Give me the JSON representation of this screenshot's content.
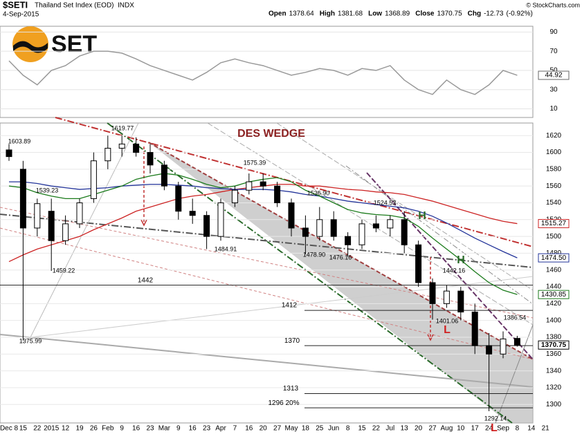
{
  "header": {
    "symbol": "$SETI",
    "name": "Thailand Set Index (EOD)",
    "exchange": "INDX",
    "date": "4-Sep-2015",
    "copyright": "© StockCharts.com",
    "quote": [
      {
        "label": "Open",
        "value": 1378.64
      },
      {
        "label": "High",
        "value": 1381.68
      },
      {
        "label": "Low",
        "value": 1368.89
      },
      {
        "label": "Close",
        "value": 1370.75
      },
      {
        "label": "Chg",
        "value": -12.73
      }
    ],
    "change_pct": "(-0.92%)",
    "logo": "SET"
  },
  "chart_data": [
    {
      "type": "line",
      "color": "#999999",
      "ylim": [
        1,
        96
      ],
      "yticks": [
        10,
        30,
        50,
        70,
        90
      ],
      "values": [
        60,
        45,
        35,
        50,
        55,
        65,
        70,
        70,
        68,
        62,
        55,
        50,
        45,
        40,
        48,
        58,
        62,
        58,
        55,
        50,
        45,
        48,
        52,
        50,
        45,
        52,
        50,
        55,
        40,
        30,
        25,
        40,
        30,
        25,
        35,
        50,
        44.92
      ]
    },
    {
      "type": "candlestick",
      "ylim": [
        1278,
        1635
      ],
      "yticks": [
        1300,
        1320,
        1340,
        1360,
        1380,
        1400,
        1420,
        1440,
        1460,
        1480,
        1500,
        1520,
        1540,
        1560,
        1580,
        1600,
        1620
      ],
      "xlabels": [
        "Dec 8",
        "15",
        "22",
        "2015",
        "12",
        "19",
        "26",
        "Feb",
        "9",
        "16",
        "23",
        "Mar",
        "9",
        "16",
        "23",
        "Apr",
        "7",
        "16",
        "20",
        "27",
        "May",
        "18",
        "25",
        "Jun",
        "8",
        "15",
        "22",
        "Jul",
        "13",
        "20",
        "27",
        "Aug",
        "10",
        "17",
        "24",
        "Sep",
        "8",
        "14",
        "21"
      ],
      "open": [
        1603,
        1580,
        1510,
        1530,
        1495,
        1515,
        1545,
        1590,
        1605,
        1610,
        1600,
        1585,
        1560,
        1530,
        1525,
        1500,
        1540,
        1555,
        1565,
        1560,
        1540,
        1510,
        1500,
        1520,
        1500,
        1490,
        1515,
        1510,
        1520,
        1490,
        1445,
        1420,
        1435,
        1410,
        1370,
        1360,
        1378.64
      ],
      "high": [
        1610,
        1590,
        1545,
        1545,
        1525,
        1545,
        1600,
        1620,
        1620,
        1618,
        1610,
        1590,
        1565,
        1545,
        1530,
        1545,
        1560,
        1575,
        1575,
        1565,
        1545,
        1525,
        1535,
        1530,
        1505,
        1520,
        1525,
        1525,
        1530,
        1495,
        1450,
        1442,
        1440,
        1420,
        1385,
        1387,
        1381.68
      ],
      "low": [
        1590,
        1376,
        1500,
        1459,
        1490,
        1510,
        1540,
        1580,
        1595,
        1595,
        1575,
        1555,
        1520,
        1515,
        1485,
        1495,
        1535,
        1550,
        1555,
        1535,
        1500,
        1479,
        1495,
        1495,
        1476,
        1485,
        1505,
        1500,
        1480,
        1440,
        1401,
        1415,
        1400,
        1360,
        1292,
        1355,
        1368.89
      ],
      "close": [
        1595,
        1510,
        1539,
        1495,
        1515,
        1540,
        1590,
        1605,
        1610,
        1600,
        1585,
        1560,
        1530,
        1525,
        1500,
        1540,
        1555,
        1565,
        1560,
        1540,
        1510,
        1500,
        1520,
        1500,
        1490,
        1515,
        1510,
        1520,
        1490,
        1445,
        1420,
        1435,
        1410,
        1370,
        1360,
        1378,
        1370.75
      ],
      "series": [
        {
          "color": "#cc2222",
          "last_label": "1515.27",
          "values": [
            1470,
            1478,
            1485,
            1490,
            1495,
            1500,
            1508,
            1515,
            1522,
            1530,
            1535,
            1540,
            1545,
            1548,
            1550,
            1553,
            1556,
            1558,
            1560,
            1562,
            1562,
            1560,
            1560,
            1558,
            1556,
            1555,
            1553,
            1552,
            1550,
            1546,
            1542,
            1537,
            1532,
            1527,
            1522,
            1518,
            1515.27
          ]
        },
        {
          "color": "#223399",
          "last_label": "1474.50",
          "values": [
            1565,
            1565,
            1563,
            1560,
            1558,
            1556,
            1557,
            1558,
            1560,
            1561,
            1562,
            1562,
            1561,
            1560,
            1558,
            1557,
            1556,
            1556,
            1556,
            1555,
            1553,
            1550,
            1548,
            1545,
            1542,
            1540,
            1538,
            1536,
            1534,
            1530,
            1524,
            1516,
            1507,
            1498,
            1490,
            1482,
            1474.5
          ]
        },
        {
          "color": "#1a7a1a",
          "last_label": "1430.85",
          "values": [
            1560,
            1558,
            1552,
            1548,
            1545,
            1545,
            1550,
            1555,
            1560,
            1568,
            1572,
            1575,
            1573,
            1568,
            1562,
            1558,
            1560,
            1565,
            1568,
            1570,
            1565,
            1555,
            1548,
            1540,
            1532,
            1528,
            1526,
            1525,
            1522,
            1512,
            1498,
            1485,
            1472,
            1458,
            1445,
            1436,
            1430.85
          ]
        }
      ],
      "levels": [
        1442,
        1412,
        1370,
        1313,
        {
          "value": 1296,
          "label": "1296  20%"
        }
      ],
      "annotations": [
        "DES WEDGE",
        "1619.77",
        "1603.89",
        "1539.23",
        "1459.22",
        "1375.99",
        "1484.91",
        "1575.39",
        "1536.90",
        "1478.90",
        "1476.16",
        "1524.53",
        "1442.16",
        "1401.06",
        "1386.54",
        "1292.14",
        "H",
        "H",
        "L",
        "L"
      ]
    }
  ]
}
